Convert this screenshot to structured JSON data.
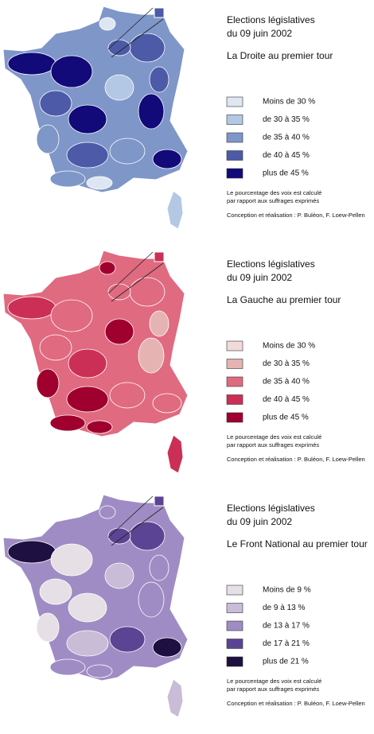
{
  "panels": [
    {
      "title_line1": "Elections législatives",
      "title_line2": "du 09 juin 2002",
      "subtitle": "La Droite au premier tour",
      "legend": [
        {
          "label": "Moins de 30 %",
          "color": "#dde6f2"
        },
        {
          "label": "de 30 à 35 %",
          "color": "#b3c8e4"
        },
        {
          "label": "de 35 à 40 %",
          "color": "#7f96c8"
        },
        {
          "label": "de 40 à 45 %",
          "color": "#4d5aa8"
        },
        {
          "label": "plus de 45 %",
          "color": "#120a78"
        }
      ],
      "note_line1": "Le pourcentage des voix est calculé",
      "note_line2": "par rapport aux suffrages exprimés",
      "credit": "Conception et réalisation : P. Buléon, F. Loew-Pellen"
    },
    {
      "title_line1": "Elections législatives",
      "title_line2": "du 09 juin 2002",
      "subtitle": "La Gauche au premier tour",
      "legend": [
        {
          "label": "Moins de 30 %",
          "color": "#f3dada"
        },
        {
          "label": "de 30 à 35 %",
          "color": "#e6b3b3"
        },
        {
          "label": "de 35 à 40 %",
          "color": "#e06a80"
        },
        {
          "label": "de 40 à 45 %",
          "color": "#cc2f55"
        },
        {
          "label": "plus de 45 %",
          "color": "#a0002e"
        }
      ],
      "note_line1": "Le pourcentage des voix est calculé",
      "note_line2": "par rapport aux suffrages exprimés",
      "credit": "Conception et réalisation : P. Buléon, F. Loew-Pellen"
    },
    {
      "title_line1": "Elections législatives",
      "title_line2": "du 09 juin 2002",
      "subtitle": "Le Front National au premier tour",
      "legend": [
        {
          "label": "Moins de 9 %",
          "color": "#e6e0e6"
        },
        {
          "label": "de 9 à 13 %",
          "color": "#c8bcd6"
        },
        {
          "label": "de 13 à 17 %",
          "color": "#a08cc4"
        },
        {
          "label": "de 17 à 21 %",
          "color": "#5c4494"
        },
        {
          "label": "plus de 21 %",
          "color": "#1e1040"
        }
      ],
      "note_line1": "Le pourcentage des voix est calculé",
      "note_line2": "par rapport aux suffrages exprimés",
      "credit": "Conception et réalisation : P. Buléon, F. Loew-Pellen"
    }
  ]
}
